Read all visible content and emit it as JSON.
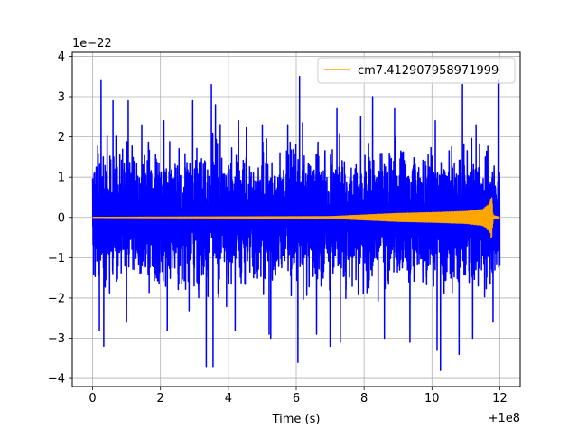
{
  "chart_data": {
    "type": "line",
    "title": "",
    "xlabel": "Time (s)",
    "ylabel": "",
    "x_offset_text": "+1e8",
    "y_scale_text": "1e−22",
    "xlim": [
      -0.6,
      12.6
    ],
    "ylim": [
      -4.2,
      4.1
    ],
    "x_ticks": [
      0,
      2,
      4,
      6,
      8,
      10,
      12
    ],
    "x_tick_labels": [
      "0",
      "2",
      "4",
      "6",
      "8",
      "10",
      "12"
    ],
    "y_ticks": [
      -4,
      -3,
      -2,
      -1,
      0,
      1,
      2,
      3,
      4
    ],
    "y_tick_labels": [
      "−4",
      "−3",
      "−2",
      "−1",
      "0",
      "1",
      "2",
      "3",
      "4"
    ],
    "grid": true,
    "legend_position": "top-right",
    "series": [
      {
        "name": "",
        "color": "#0000ff",
        "description_values": {
          "x_range": [
            0,
            12
          ],
          "typical_envelope": 1.9,
          "peaks": [
            [
              0.25,
              3.4
            ],
            [
              0.6,
              2.9
            ],
            [
              1.05,
              2.9
            ],
            [
              1.45,
              2.3
            ],
            [
              2.1,
              2.4
            ],
            [
              2.95,
              2.9
            ],
            [
              3.5,
              3.3
            ],
            [
              3.62,
              2.8
            ],
            [
              4.3,
              2.4
            ],
            [
              5.0,
              2.3
            ],
            [
              5.75,
              2.3
            ],
            [
              6.1,
              3.5
            ],
            [
              7.2,
              2.7
            ],
            [
              7.9,
              2.5
            ],
            [
              8.25,
              3.0
            ],
            [
              8.9,
              2.7
            ],
            [
              9.35,
              3.0
            ],
            [
              10.1,
              2.4
            ],
            [
              10.9,
              3.3
            ],
            [
              11.3,
              2.3
            ],
            [
              11.95,
              3.4
            ]
          ],
          "troughs": [
            [
              0.2,
              -2.8
            ],
            [
              0.33,
              -3.2
            ],
            [
              1.0,
              -2.6
            ],
            [
              2.2,
              -2.8
            ],
            [
              3.35,
              -3.7
            ],
            [
              3.55,
              -3.7
            ],
            [
              4.2,
              -2.8
            ],
            [
              5.2,
              -2.9
            ],
            [
              5.25,
              -3.0
            ],
            [
              6.05,
              -3.6
            ],
            [
              6.6,
              -2.9
            ],
            [
              7.0,
              -3.2
            ],
            [
              7.3,
              -3.1
            ],
            [
              8.6,
              -3.0
            ],
            [
              9.35,
              -3.1
            ],
            [
              10.15,
              -3.3
            ],
            [
              10.25,
              -3.8
            ],
            [
              10.8,
              -3.4
            ],
            [
              11.2,
              -3.0
            ],
            [
              11.8,
              -2.6
            ]
          ]
        }
      },
      {
        "name": "cm7.412907958971999",
        "color": "#ffa500",
        "description_values": {
          "x_range": [
            0,
            12
          ],
          "amplitude_envelope": [
            [
              0.0,
              0.0
            ],
            [
              7.0,
              0.02
            ],
            [
              8.0,
              0.06
            ],
            [
              9.0,
              0.1
            ],
            [
              10.0,
              0.12
            ],
            [
              11.0,
              0.15
            ],
            [
              11.5,
              0.2
            ],
            [
              11.7,
              0.35
            ],
            [
              11.76,
              0.55
            ],
            [
              11.8,
              0.05
            ],
            [
              12.0,
              0.0
            ]
          ]
        }
      }
    ]
  }
}
